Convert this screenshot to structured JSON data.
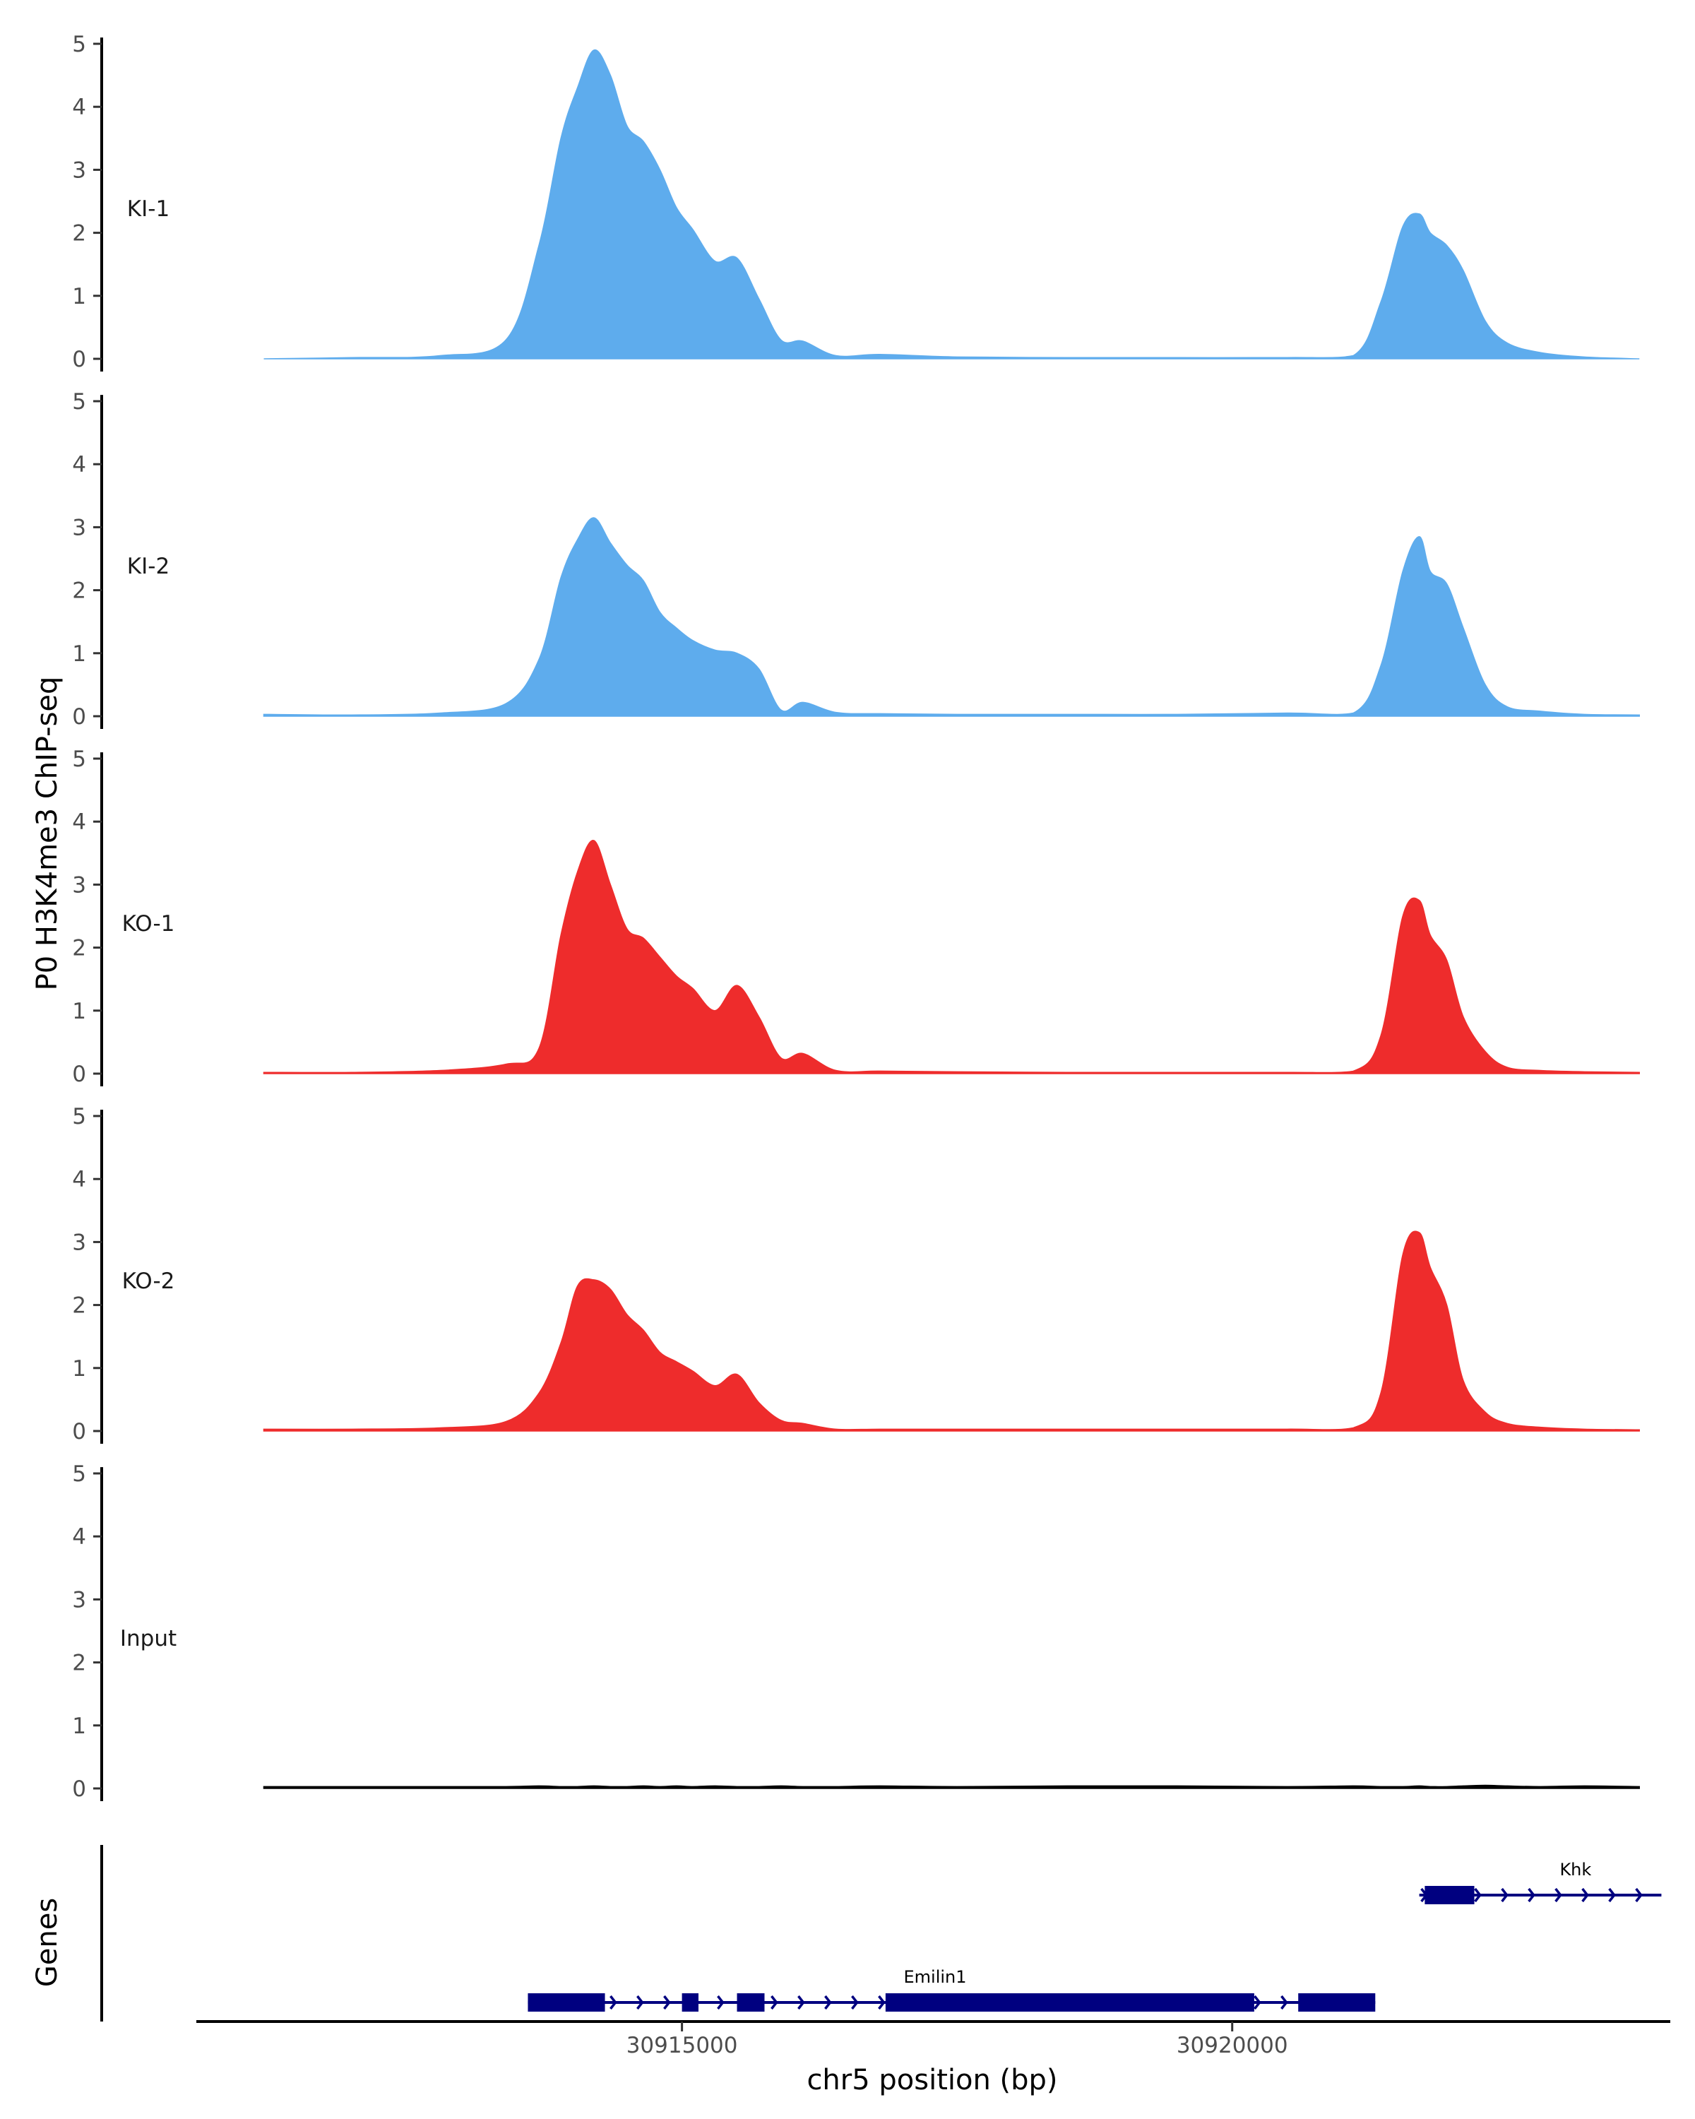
{
  "chart_data": {
    "type": "area",
    "chromosome": "chr5",
    "title": "",
    "ylabel": "P0 H3K4me3 ChIP-seq",
    "xlabel": "chr5 position (bp)",
    "genes_label": "Genes",
    "xlim": [
      30910600,
      30924000
    ],
    "ylim": [
      0,
      5.1
    ],
    "y_ticks": [
      "0",
      "1",
      "2",
      "3",
      "4",
      "5"
    ],
    "x_ticks": [
      {
        "position": 30915000,
        "label": "30915000"
      },
      {
        "position": 30920000,
        "label": "30920000"
      }
    ],
    "x": [
      30911200,
      30912000,
      30912800,
      30913400,
      30913700,
      30913900,
      30914050,
      30914200,
      30914350,
      30914500,
      30914650,
      30914800,
      30914950,
      30915100,
      30915300,
      30915500,
      30915700,
      30915900,
      30916100,
      30916400,
      30916800,
      30917500,
      30918500,
      30919500,
      30920500,
      30921100,
      30921350,
      30921550,
      30921700,
      30921800,
      30921950,
      30922100,
      30922300,
      30922500,
      30922800,
      30923200,
      30923700
    ],
    "series": [
      {
        "name": "KI-1",
        "color": "#5eaced",
        "values": [
          0.0,
          0.02,
          0.05,
          0.3,
          1.8,
          3.5,
          4.3,
          4.9,
          4.5,
          3.7,
          3.45,
          3.0,
          2.4,
          2.05,
          1.55,
          1.6,
          0.95,
          0.3,
          0.28,
          0.05,
          0.07,
          0.03,
          0.02,
          0.02,
          0.02,
          0.05,
          0.9,
          2.1,
          2.3,
          2.0,
          1.8,
          1.4,
          0.6,
          0.25,
          0.1,
          0.03,
          0.0
        ]
      },
      {
        "name": "KI-2",
        "color": "#5eaced",
        "values": [
          0.03,
          0.02,
          0.05,
          0.2,
          0.9,
          2.2,
          2.8,
          3.15,
          2.75,
          2.4,
          2.15,
          1.65,
          1.4,
          1.2,
          1.05,
          1.0,
          0.75,
          0.1,
          0.22,
          0.06,
          0.04,
          0.03,
          0.03,
          0.03,
          0.05,
          0.05,
          0.8,
          2.3,
          2.85,
          2.3,
          2.1,
          1.4,
          0.5,
          0.15,
          0.08,
          0.03,
          0.02
        ]
      },
      {
        "name": "KO-1",
        "color": "#ee2c2c",
        "values": [
          0.02,
          0.02,
          0.05,
          0.15,
          0.4,
          2.2,
          3.2,
          3.7,
          3.0,
          2.3,
          2.15,
          1.85,
          1.55,
          1.35,
          1.0,
          1.4,
          0.9,
          0.25,
          0.32,
          0.05,
          0.04,
          0.03,
          0.02,
          0.02,
          0.02,
          0.04,
          0.6,
          2.5,
          2.75,
          2.2,
          1.8,
          0.9,
          0.35,
          0.1,
          0.05,
          0.03,
          0.02
        ]
      },
      {
        "name": "KO-2",
        "color": "#ee2c2c",
        "values": [
          0.03,
          0.03,
          0.05,
          0.15,
          0.6,
          1.4,
          2.3,
          2.4,
          2.25,
          1.85,
          1.6,
          1.25,
          1.1,
          0.95,
          0.72,
          0.9,
          0.45,
          0.17,
          0.12,
          0.03,
          0.03,
          0.03,
          0.03,
          0.03,
          0.03,
          0.05,
          0.6,
          2.8,
          3.15,
          2.6,
          2.0,
          0.8,
          0.3,
          0.12,
          0.06,
          0.03,
          0.02
        ]
      },
      {
        "name": "Input",
        "color": "#000000",
        "values": [
          0.03,
          0.03,
          0.03,
          0.03,
          0.04,
          0.03,
          0.03,
          0.04,
          0.03,
          0.03,
          0.04,
          0.03,
          0.04,
          0.03,
          0.04,
          0.03,
          0.03,
          0.04,
          0.03,
          0.03,
          0.04,
          0.03,
          0.04,
          0.04,
          0.03,
          0.04,
          0.03,
          0.03,
          0.04,
          0.03,
          0.03,
          0.04,
          0.05,
          0.04,
          0.03,
          0.04,
          0.03
        ]
      }
    ],
    "genes": [
      {
        "name": "Emilin1",
        "strand": "+",
        "start": 30913600,
        "end": 30921300,
        "exons": [
          [
            30913600,
            30914300
          ],
          [
            30915000,
            30915150
          ],
          [
            30915500,
            30915750
          ],
          [
            30916850,
            30920200
          ],
          [
            30920600,
            30921300
          ]
        ]
      },
      {
        "name": "Khk",
        "strand": "+",
        "start": 30921700,
        "end": 30923900,
        "exons": [
          [
            30921750,
            30922200
          ]
        ]
      }
    ]
  }
}
